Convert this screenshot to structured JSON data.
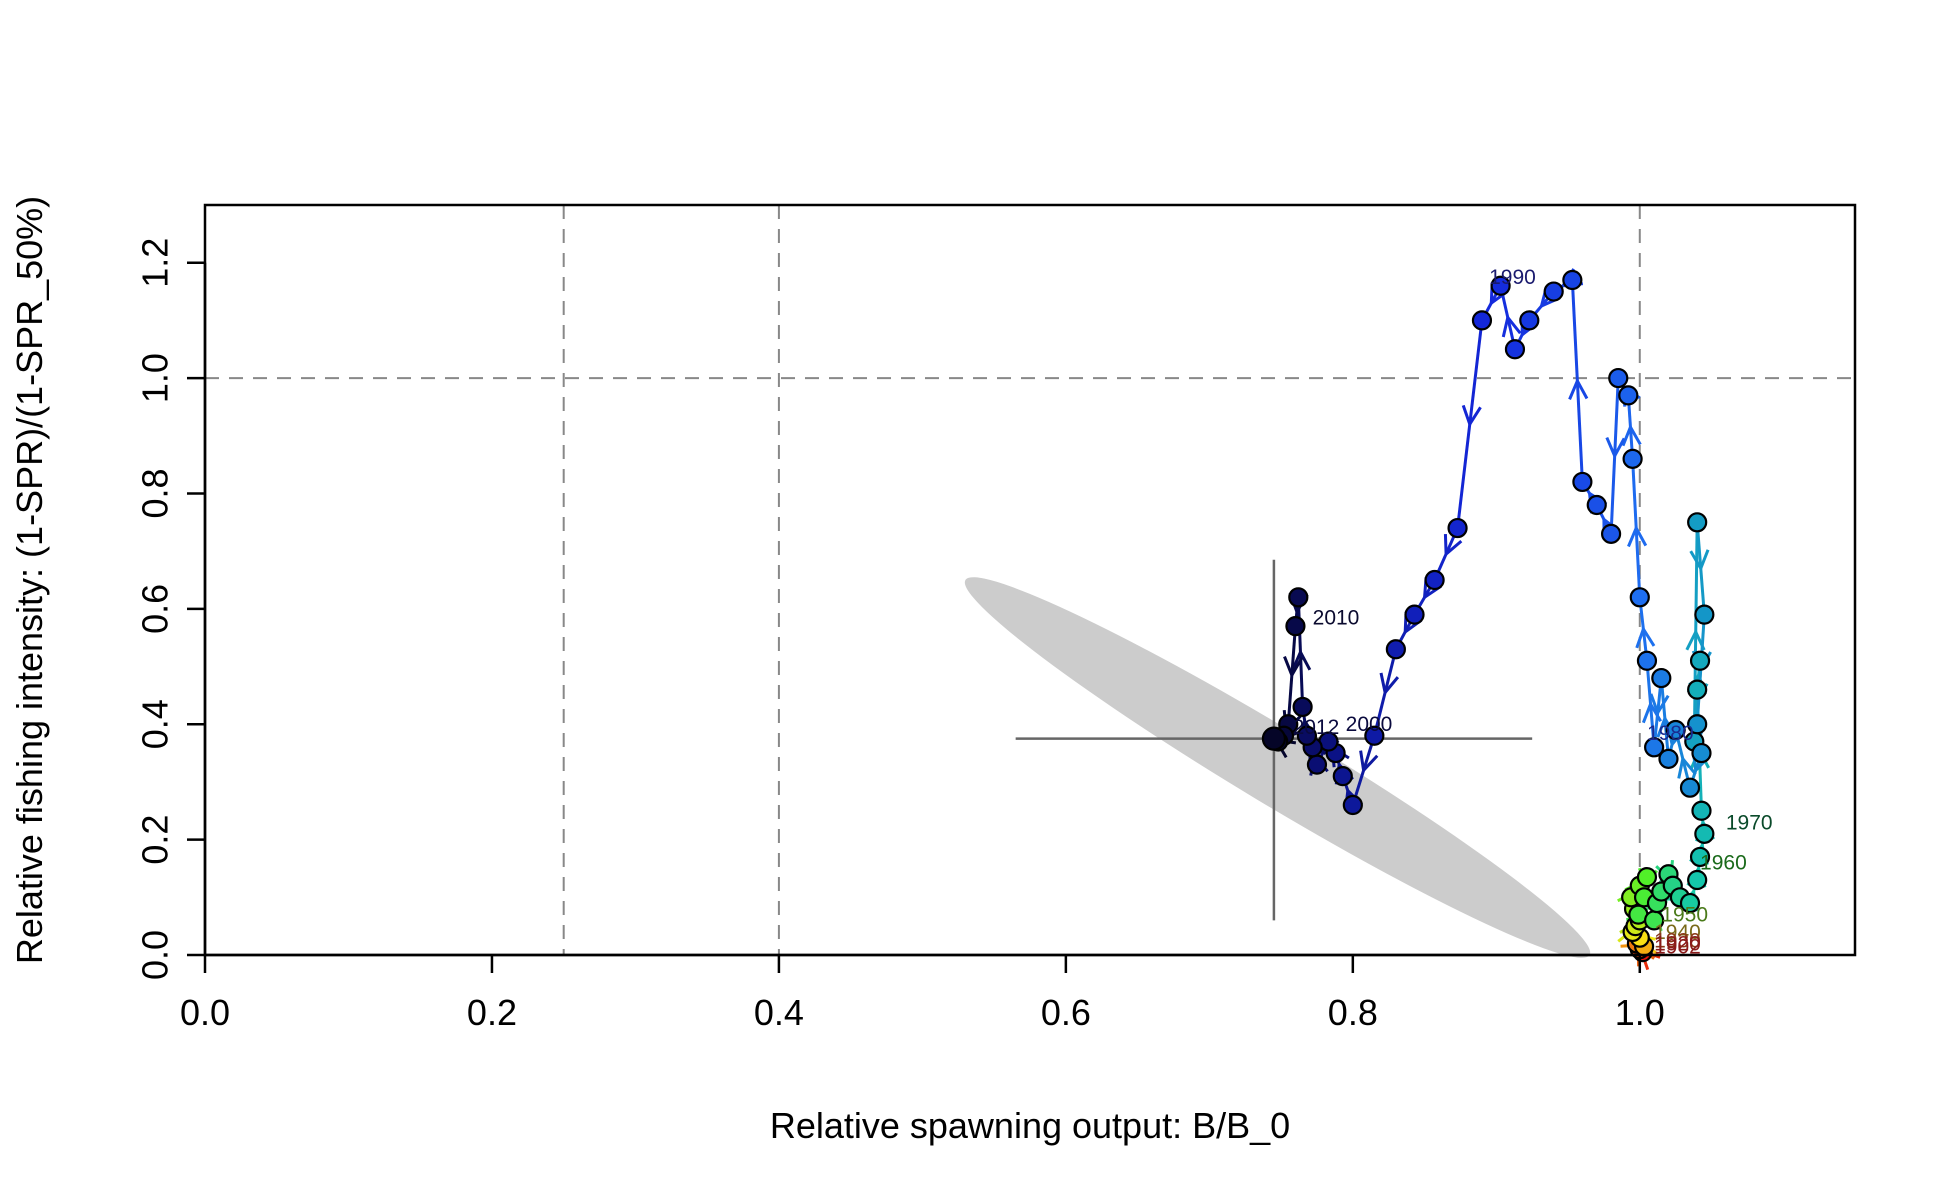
{
  "chart_data": {
    "type": "scatter",
    "title": "",
    "xlabel": "Relative spawning output: B/B_0",
    "ylabel": "Relative fishing intensity: (1-SPR)/(1-SPR_50%)",
    "xlim": [
      0,
      1.15
    ],
    "ylim": [
      0,
      1.3
    ],
    "xticks": [
      0,
      0.2,
      0.4,
      0.6,
      0.8,
      1.0
    ],
    "yticks": [
      0,
      0.2,
      0.4,
      0.6,
      0.8,
      1.0,
      1.2
    ],
    "xtick_labels": [
      "0.0",
      "0.2",
      "0.4",
      "0.6",
      "0.8",
      "1.0"
    ],
    "ytick_labels": [
      "0.0",
      "0.2",
      "0.4",
      "0.6",
      "0.8",
      "1.0",
      "1.2"
    ],
    "grid": false,
    "reference_lines": {
      "vertical": [
        0.25,
        0.4,
        1.0
      ],
      "horizontal": [
        1.0
      ]
    },
    "uncertainty": {
      "center": [
        0.745,
        0.375
      ],
      "x_range": [
        0.565,
        0.925
      ],
      "y_range": [
        0.06,
        0.685
      ],
      "ellipse_color": "#cccccc",
      "cross_color": "#666666"
    },
    "series": [
      {
        "x": [
          1.002,
          1.0,
          0.998,
          1.003,
          1.0,
          0.995,
          0.997,
          1.0,
          0.996,
          0.994,
          1.0,
          1.005,
          1.003,
          0.999,
          1.01,
          1.012,
          1.015,
          1.02,
          1.023,
          1.028,
          1.035,
          1.04,
          1.042,
          1.045,
          1.043,
          1.04,
          1.042,
          1.038,
          1.04,
          1.045,
          1.04,
          1.043,
          1.035,
          1.025,
          1.02,
          1.015,
          1.01,
          1.005,
          1.0,
          0.995,
          0.992,
          0.985,
          0.98,
          0.97,
          0.96,
          0.953,
          0.94,
          0.923,
          0.913,
          0.903,
          0.89,
          0.873,
          0.857,
          0.843,
          0.83,
          0.815,
          0.8,
          0.793,
          0.788,
          0.783,
          0.775,
          0.772,
          0.768,
          0.765,
          0.762,
          0.76,
          0.755,
          0.752,
          0.748,
          0.745
        ],
        "y": [
          0.005,
          0.01,
          0.02,
          0.015,
          0.03,
          0.04,
          0.05,
          0.06,
          0.08,
          0.1,
          0.12,
          0.135,
          0.1,
          0.07,
          0.06,
          0.09,
          0.11,
          0.14,
          0.12,
          0.1,
          0.09,
          0.13,
          0.17,
          0.21,
          0.25,
          0.46,
          0.51,
          0.37,
          0.75,
          0.59,
          0.4,
          0.35,
          0.29,
          0.39,
          0.34,
          0.48,
          0.36,
          0.51,
          0.62,
          0.86,
          0.97,
          1.0,
          0.73,
          0.78,
          0.82,
          1.17,
          1.15,
          1.1,
          1.05,
          1.16,
          1.1,
          0.74,
          0.65,
          0.59,
          0.53,
          0.38,
          0.26,
          0.31,
          0.35,
          0.37,
          0.33,
          0.36,
          0.38,
          0.43,
          0.62,
          0.57,
          0.4,
          0.38,
          0.37,
          0.375
        ]
      }
    ],
    "year_labels": [
      {
        "text": "1990",
        "x": 0.895,
        "y": 1.175,
        "color": "#1a1a6e"
      },
      {
        "text": "2010",
        "x": 0.772,
        "y": 0.585,
        "color": "#0a0a2e"
      },
      {
        "text": "2000",
        "x": 0.795,
        "y": 0.4,
        "color": "#0a0a3e"
      },
      {
        "text": "2012",
        "x": 0.758,
        "y": 0.395,
        "color": "#0a0a3e"
      },
      {
        "text": "1980",
        "x": 1.005,
        "y": 0.385,
        "color": "#1a2a8e"
      },
      {
        "text": "1970",
        "x": 1.06,
        "y": 0.23,
        "color": "#0a4a2a"
      },
      {
        "text": "1960",
        "x": 1.042,
        "y": 0.16,
        "color": "#1a6a1a"
      },
      {
        "text": "1950",
        "x": 1.015,
        "y": 0.07,
        "color": "#4a7a1a"
      },
      {
        "text": "1940",
        "x": 1.01,
        "y": 0.04,
        "color": "#7a6a1a"
      },
      {
        "text": "1930",
        "x": 1.01,
        "y": 0.025,
        "color": "#8a3a1a"
      },
      {
        "text": "1920",
        "x": 1.01,
        "y": 0.02,
        "color": "#8a1a1a"
      },
      {
        "text": "1902",
        "x": 1.01,
        "y": 0.015,
        "color": "#8a1a1a"
      }
    ],
    "colors": {
      "axis": "#000000",
      "reference": "#888888"
    }
  }
}
